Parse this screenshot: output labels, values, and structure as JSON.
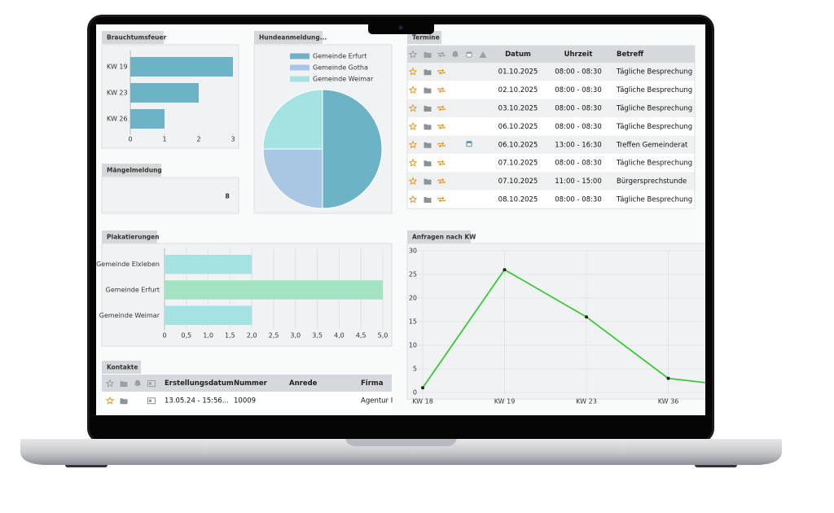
{
  "chart_data": [
    {
      "type": "bar",
      "orientation": "horizontal",
      "title": "Brauchtumsfeuer",
      "categories": [
        "KW 19",
        "KW 23",
        "KW 26"
      ],
      "values": [
        3,
        2,
        1
      ],
      "color": "#6db3c6",
      "xlim": [
        0,
        3
      ],
      "xticks": [
        0,
        1,
        2,
        3
      ],
      "grid": false
    },
    {
      "type": "pie",
      "title": "Hundeanmeldung...",
      "categories": [
        "Gemeinde Erfurt",
        "Gemeinde Gotha",
        "Gemeinde Weimar"
      ],
      "values": [
        50,
        25,
        25
      ],
      "colors": [
        "#6db3c6",
        "#a9c7e3",
        "#a5e3e3"
      ],
      "legend": "top"
    },
    {
      "type": "bar",
      "orientation": "horizontal",
      "title": "Plakatierungen",
      "categories": [
        "Gemeinde Elxleben",
        "Gemeinde Erfurt",
        "Gemeinde Weimar"
      ],
      "values": [
        2,
        5,
        2
      ],
      "colors": [
        "#a5e3e3",
        "#a3e3c4",
        "#a5e3e3"
      ],
      "xlim": [
        0,
        5
      ],
      "xticks": [
        0,
        {
          "value": 0.5,
          "label": "0,5"
        },
        {
          "value": 1,
          "label": "1,0"
        },
        {
          "value": 1.5,
          "label": "1,5"
        },
        {
          "value": 2,
          "label": "2,0"
        },
        {
          "value": 2.5,
          "label": "2,5"
        },
        {
          "value": 3,
          "label": "3,0"
        },
        {
          "value": 3.5,
          "label": "3,5"
        },
        {
          "value": 4,
          "label": "4,0"
        },
        {
          "value": 4.5,
          "label": "4,5"
        },
        {
          "value": 5,
          "label": "5,0"
        }
      ],
      "grid": true
    },
    {
      "type": "line",
      "title": "Anfragen nach KW",
      "categories": [
        "KW 18",
        "KW 19",
        "KW 23",
        "KW 36",
        null
      ],
      "values": [
        1,
        26,
        16,
        3,
        1
      ],
      "color": "#3cc83c",
      "ylim": [
        0,
        30
      ],
      "yticks": [
        0,
        5,
        10,
        15,
        20,
        25,
        30
      ],
      "grid": true
    }
  ],
  "maengelmeldung": {
    "title": "Mängelmeldung",
    "value": 8
  },
  "termine": {
    "title": "Termine",
    "columns": [
      "Datum",
      "Uhrzeit",
      "Betreff"
    ],
    "rows": [
      [
        "01.10.2025",
        "08:00 - 08:30",
        "Tägliche Besprechung"
      ],
      [
        "02.10.2025",
        "08:00 - 08:30",
        "Tägliche Besprechung"
      ],
      [
        "03.10.2025",
        "08:00 - 08:30",
        "Tägliche Besprechung"
      ],
      [
        "06.10.2025",
        "08:00 - 08:30",
        "Tägliche Besprechung"
      ],
      [
        "06.10.2025",
        "13:00 - 16:30",
        "Treffen Gemeinderat"
      ],
      [
        "07.10.2025",
        "08:00 - 08:30",
        "Tägliche Besprechung"
      ],
      [
        "07.10.2025",
        "11:00 - 15:00",
        "Bürgersprechstunde"
      ],
      [
        "08.10.2025",
        "08:00 - 08:30",
        "Tägliche Besprechung"
      ]
    ]
  },
  "kontakte": {
    "title": "Kontakte",
    "columns": [
      "Erstellungsdatum",
      "Nummer",
      "Anrede",
      "Firma"
    ],
    "rows": [
      [
        "13.05.24 - 15:56...",
        "10009",
        null,
        "Agentur I"
      ]
    ]
  }
}
